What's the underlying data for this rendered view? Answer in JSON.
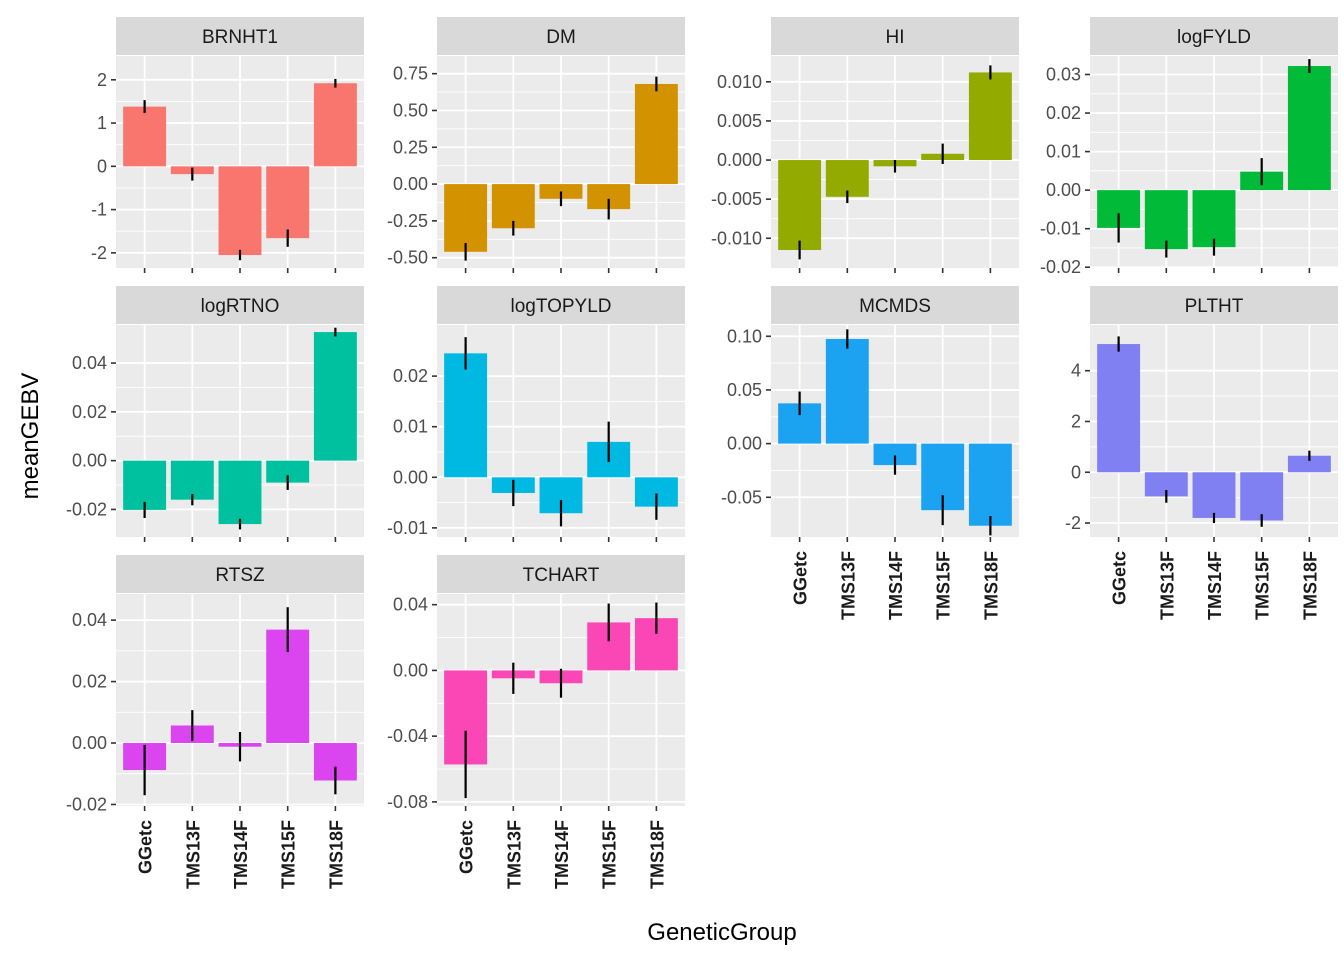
{
  "chart_data": {
    "type": "bar",
    "layout": "facet_wrap",
    "ncol": 4,
    "xlabel": "GeneticGroup",
    "ylabel": "meanGEBV",
    "categories": [
      "GGetc",
      "TMS13F",
      "TMS14F",
      "TMS15F",
      "TMS18F"
    ],
    "scales": "free",
    "panels": [
      {
        "name": "BRNHT1",
        "color": "#F8766D",
        "ylim": [
          -2.35,
          2.55
        ],
        "yticks": [
          -2,
          -1,
          0,
          1,
          2
        ],
        "yticklabels": [
          "-2",
          "-1",
          "0",
          "1",
          "2"
        ],
        "values": [
          1.38,
          -0.18,
          -2.05,
          -1.66,
          1.92
        ],
        "errors": [
          0.15,
          0.15,
          0.12,
          0.2,
          0.1
        ],
        "show_x_labels": false
      },
      {
        "name": "DM",
        "color": "#D39200",
        "ylim": [
          -0.57,
          0.87
        ],
        "yticks": [
          -0.5,
          -0.25,
          0,
          0.25,
          0.5,
          0.75
        ],
        "yticklabels": [
          "-0.50",
          "-0.25",
          "0.00",
          "0.25",
          "0.50",
          "0.75"
        ],
        "values": [
          -0.46,
          -0.3,
          -0.1,
          -0.17,
          0.68
        ],
        "errors": [
          0.06,
          0.05,
          0.05,
          0.07,
          0.05
        ],
        "show_x_labels": false
      },
      {
        "name": "HI",
        "color": "#93AA00",
        "ylim": [
          -0.0138,
          0.0133
        ],
        "yticks": [
          -0.01,
          -0.005,
          0,
          0.005,
          0.01
        ],
        "yticklabels": [
          "-0.010",
          "-0.005",
          "0.000",
          "0.005",
          "0.010"
        ],
        "values": [
          -0.0115,
          -0.0047,
          -0.0008,
          0.0008,
          0.0112
        ],
        "errors": [
          0.0012,
          0.0008,
          0.0008,
          0.0013,
          0.0009
        ],
        "show_x_labels": false
      },
      {
        "name": "logFYLD",
        "color": "#00BA38",
        "ylim": [
          -0.0202,
          0.0348
        ],
        "yticks": [
          -0.02,
          -0.01,
          0,
          0.01,
          0.02,
          0.03
        ],
        "yticklabels": [
          "-0.02",
          "-0.01",
          "0.00",
          "0.01",
          "0.02",
          "0.03"
        ],
        "values": [
          -0.0098,
          -0.0153,
          -0.0148,
          0.0048,
          0.0322
        ],
        "errors": [
          0.0038,
          0.0022,
          0.0022,
          0.0035,
          0.0018
        ],
        "show_x_labels": false
      },
      {
        "name": "logRTNO",
        "color": "#00C19F",
        "ylim": [
          -0.0313,
          0.0556
        ],
        "yticks": [
          -0.02,
          0,
          0.02,
          0.04
        ],
        "yticklabels": [
          "-0.02",
          "0.00",
          "0.02",
          "0.04"
        ],
        "values": [
          -0.0202,
          -0.016,
          -0.026,
          -0.009,
          0.0527
        ],
        "errors": [
          0.0033,
          0.0023,
          0.0022,
          0.003,
          0.0018
        ],
        "show_x_labels": false
      },
      {
        "name": "logTOPYLD",
        "color": "#00B9E3",
        "ylim": [
          -0.0118,
          0.0301
        ],
        "yticks": [
          -0.01,
          0,
          0.01,
          0.02
        ],
        "yticklabels": [
          "-0.01",
          "0.00",
          "0.01",
          "0.02"
        ],
        "values": [
          0.0245,
          -0.0031,
          -0.0071,
          0.007,
          -0.0058
        ],
        "errors": [
          0.0032,
          0.0026,
          0.0026,
          0.004,
          0.0026
        ],
        "show_x_labels": false
      },
      {
        "name": "MCMDS",
        "color": "#1BA3F2",
        "ylim": [
          -0.087,
          0.1105
        ],
        "yticks": [
          -0.05,
          0,
          0.05,
          0.1
        ],
        "yticklabels": [
          "-0.05",
          "0.00",
          "0.05",
          "0.10"
        ],
        "values": [
          0.0375,
          0.0975,
          -0.02,
          -0.062,
          -0.0765
        ],
        "errors": [
          0.011,
          0.009,
          0.009,
          0.014,
          0.009
        ],
        "show_x_labels": true
      },
      {
        "name": "PLTHT",
        "color": "#8080F2",
        "ylim": [
          -2.55,
          5.8
        ],
        "yticks": [
          -2,
          0,
          2,
          4
        ],
        "yticklabels": [
          "-2",
          "0",
          "2",
          "4"
        ],
        "values": [
          5.05,
          -0.95,
          -1.8,
          -1.9,
          0.65
        ],
        "errors": [
          0.3,
          0.25,
          0.2,
          0.25,
          0.2
        ],
        "show_x_labels": true
      },
      {
        "name": "RTSZ",
        "color": "#DB45F0",
        "ylim": [
          -0.0205,
          0.0485
        ],
        "yticks": [
          -0.02,
          0,
          0.02,
          0.04
        ],
        "yticklabels": [
          "-0.02",
          "0.00",
          "0.02",
          "0.04"
        ],
        "values": [
          -0.0088,
          0.0057,
          -0.0012,
          0.0369,
          -0.0122
        ],
        "errors": [
          0.0082,
          0.005,
          0.0048,
          0.0073,
          0.0045
        ],
        "show_x_labels": true
      },
      {
        "name": "TCHART",
        "color": "#FB46B6",
        "ylim": [
          -0.0825,
          0.0465
        ],
        "yticks": [
          -0.08,
          -0.04,
          0,
          0.04
        ],
        "yticklabels": [
          "-0.08",
          "-0.04",
          "0.00",
          "0.04"
        ],
        "values": [
          -0.0572,
          -0.0048,
          -0.0078,
          0.0292,
          0.0318
        ],
        "errors": [
          0.0205,
          0.0095,
          0.0088,
          0.0115,
          0.0095
        ],
        "show_x_labels": true
      }
    ]
  }
}
